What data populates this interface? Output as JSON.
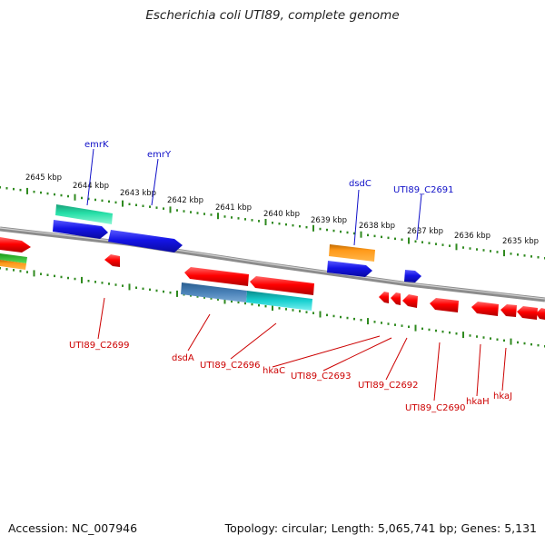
{
  "title": "Escherichia coli UTI89, complete genome",
  "footer": {
    "accession": "Accession: NC_007946",
    "topology": "Topology: circular; Length: 5,065,741 bp; Genes: 5,131"
  },
  "colors": {
    "backbone": "#8c8c8c",
    "ticks": "#2f8a1f",
    "forward_label": "#1010c8",
    "reverse_label": "#cc0000",
    "gene_blue": "#1414e6",
    "gene_red": "#ff0000",
    "gene_orange": "#ff9a1a",
    "gene_teal": "#26e0a8",
    "gene_steel": "#4a82b8",
    "gene_cyan": "#18d0d0"
  },
  "ruler": {
    "unit": "kbp",
    "ticks": [
      "2645 kbp",
      "2644 kbp",
      "2643 kbp",
      "2642 kbp",
      "2641 kbp",
      "2640 kbp",
      "2639 kbp",
      "2638 kbp",
      "2637 kbp",
      "2636 kbp",
      "2635 kbp"
    ]
  },
  "forward_labels": [
    "emrK",
    "emrY",
    "dsdC",
    "UTI89_C2691"
  ],
  "reverse_labels": [
    "UTI89_C2699",
    "dsdA",
    "UTI89_C2696",
    "hkaC",
    "UTI89_C2693",
    "UTI89_C2692",
    "UTI89_C2690",
    "hkaH",
    "hkaJ"
  ]
}
